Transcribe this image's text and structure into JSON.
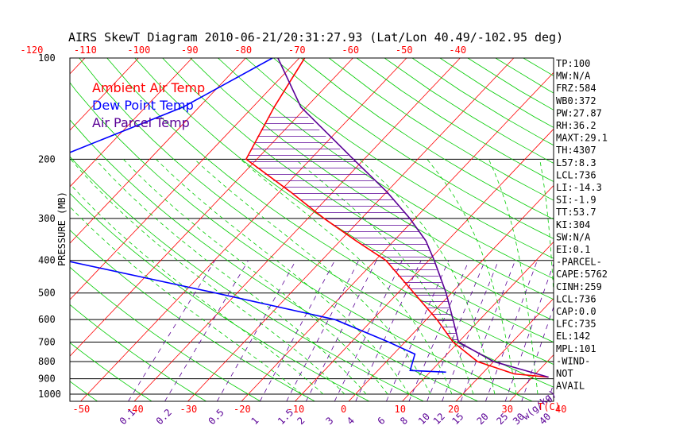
{
  "chart_data": {
    "type": "line",
    "title": "AIRS SkewT Diagram 2010-06-21/20:31:27.93 (Lat/Lon 40.49/-102.95 deg)",
    "ylabel": "PRESSURE (MB)",
    "xlabel_bottom": "T(C)",
    "mixing_label": "w(g/kg)",
    "pressure_ticks": [
      "100",
      "200",
      "300",
      "400",
      "500",
      "600",
      "700",
      "800",
      "900",
      "1000"
    ],
    "top_temp_ticks": [
      "-120",
      "-110",
      "-100",
      "-90",
      "-80",
      "-70",
      "-60",
      "-50",
      "-40"
    ],
    "bottom_temp_ticks": [
      "-50",
      "-40",
      "-30",
      "-20",
      "-10",
      "0",
      "10",
      "20",
      "30",
      "40"
    ],
    "mixing_ratio_ticks": [
      "0.1",
      "0.2",
      "0.5",
      "1",
      "1.5",
      "2",
      "3",
      "4",
      "6",
      "8",
      "10",
      "12",
      "15",
      "20",
      "25",
      "30",
      "40"
    ],
    "legend": [
      {
        "label": "Ambient Air Temp",
        "color": "#ff0000"
      },
      {
        "label": "Dew Point Temp",
        "color": "#0000ff"
      },
      {
        "label": "Air Parcel Temp",
        "color": "#5a0096"
      }
    ],
    "colors": {
      "isotherm": "#ff0000",
      "dry_adiabat": "#00cc00",
      "moist_adiabat": "#00cc00",
      "mixing_ratio": "#5a0096",
      "isobar": "#000000"
    },
    "series": [
      {
        "name": "Ambient Air Temp",
        "color": "#ff0000",
        "points": [
          [
            100,
            -69
          ],
          [
            140,
            -66
          ],
          [
            200,
            -62
          ],
          [
            250,
            -48
          ],
          [
            300,
            -37
          ],
          [
            350,
            -27
          ],
          [
            400,
            -18
          ],
          [
            500,
            -7
          ],
          [
            600,
            2
          ],
          [
            700,
            9
          ],
          [
            800,
            17
          ],
          [
            870,
            26
          ],
          [
            890,
            33
          ]
        ]
      },
      {
        "name": "Dew Point Temp",
        "color": "#0000ff",
        "points": [
          [
            100,
            -75
          ],
          [
            140,
            -83
          ],
          [
            200,
            -98
          ],
          [
            250,
            -102
          ],
          [
            300,
            -95
          ],
          [
            350,
            -87
          ],
          [
            400,
            -78
          ],
          [
            500,
            -44
          ],
          [
            600,
            -17
          ],
          [
            700,
            -3
          ],
          [
            760,
            4
          ],
          [
            850,
            6
          ],
          [
            860,
            13
          ]
        ]
      },
      {
        "name": "Air Parcel Temp",
        "color": "#5a0096",
        "points": [
          [
            100,
            -74
          ],
          [
            140,
            -61
          ],
          [
            200,
            -42
          ],
          [
            250,
            -30
          ],
          [
            300,
            -21
          ],
          [
            350,
            -14
          ],
          [
            400,
            -9
          ],
          [
            500,
            -1
          ],
          [
            600,
            5
          ],
          [
            700,
            10
          ],
          [
            800,
            20
          ],
          [
            890,
            33
          ]
        ]
      }
    ]
  },
  "indices": [
    "TP:100",
    "MW:N/A",
    "FRZ:584",
    "WB0:372",
    "PW:27.87",
    "RH:36.2",
    "MAXT:29.1",
    "TH:4307",
    "L57:8.3",
    "LCL:736",
    "LI:-14.3",
    "SI:-1.9",
    "TT:53.7",
    "KI:304",
    "SW:N/A",
    "EI:0.1",
    "-PARCEL-",
    "CAPE:5762",
    "CINH:259",
    "LCL:736",
    "CAP:0.0",
    "LFC:735",
    "EL:142",
    "MPL:101",
    "-WIND-",
    "NOT",
    "AVAIL"
  ]
}
